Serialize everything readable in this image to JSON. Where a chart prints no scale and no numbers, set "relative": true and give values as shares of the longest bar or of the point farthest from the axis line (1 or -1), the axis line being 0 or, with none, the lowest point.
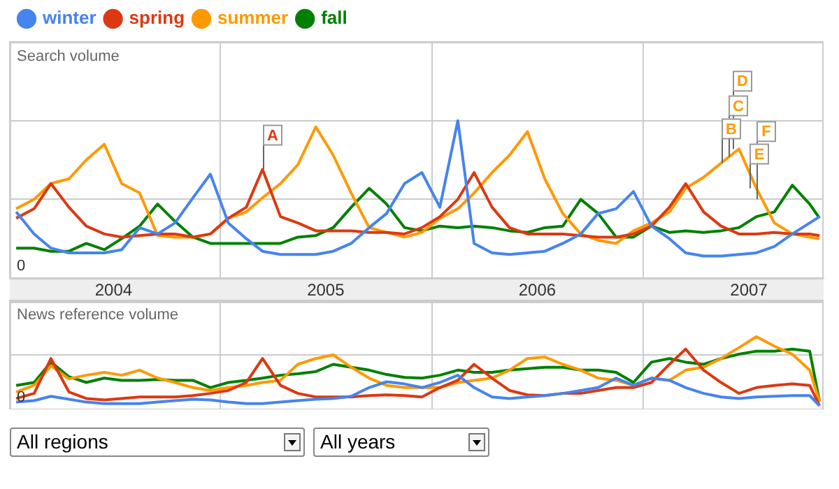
{
  "chart_data": [
    {
      "type": "line",
      "title": "Search volume",
      "relative": true,
      "legend": "top left",
      "grid": true,
      "tick_labels": "x",
      "x": [
        "2004-01-15",
        "2004-02-15",
        "2004-03-15",
        "2004-04-15",
        "2004-05-15",
        "2004-06-15",
        "2004-07-15",
        "2004-08-15",
        "2004-09-15",
        "2004-10-15",
        "2004-11-15",
        "2004-12-15",
        "2005-01-15",
        "2005-02-15",
        "2005-03-15",
        "2005-04-15",
        "2005-05-15",
        "2005-06-15",
        "2005-07-15",
        "2005-08-15",
        "2005-09-15",
        "2005-10-15",
        "2005-11-15",
        "2005-12-15",
        "2006-01-15",
        "2006-02-15",
        "2006-03-15",
        "2006-04-15",
        "2006-05-15",
        "2006-06-15",
        "2006-07-15",
        "2006-08-15",
        "2006-09-15",
        "2006-10-15",
        "2006-11-15",
        "2006-12-15",
        "2007-01-15",
        "2007-02-15",
        "2007-03-15",
        "2007-04-15",
        "2007-05-15",
        "2007-06-15",
        "2007-07-15",
        "2007-08-15",
        "2007-09-15",
        "2007-10-15",
        "2007-11-01"
      ],
      "xlim": [
        "2004-01-04",
        "2007-11-08"
      ],
      "xticks": [
        {
          "value": "2004-07-01",
          "label": "2004"
        },
        {
          "value": "2005-01-01",
          "label": null
        },
        {
          "value": "2005-07-02",
          "label": "2005"
        },
        {
          "value": "2006-01-01",
          "label": null
        },
        {
          "value": "2006-07-02",
          "label": "2006"
        },
        {
          "value": "2007-01-01",
          "label": null
        },
        {
          "value": "2007-07-02",
          "label": "2007"
        }
      ],
      "series": [
        {
          "name": "winter",
          "color": "#4684ee",
          "values": [
            0.42,
            0.28,
            0.19,
            0.16,
            0.16,
            0.16,
            0.18,
            0.32,
            0.28,
            0.35,
            0.51,
            0.66,
            0.35,
            0.25,
            0.17,
            0.15,
            0.15,
            0.15,
            0.17,
            0.22,
            0.32,
            0.41,
            0.6,
            0.67,
            0.45,
            1.0,
            0.22,
            0.16,
            0.15,
            0.16,
            0.17,
            0.22,
            0.28,
            0.41,
            0.44,
            0.55,
            0.33,
            0.25,
            0.16,
            0.14,
            0.14,
            0.15,
            0.16,
            0.2,
            0.28,
            0.35,
            0.39
          ]
        },
        {
          "name": "spring",
          "color": "#dc3912",
          "values": [
            0.38,
            0.44,
            0.6,
            0.45,
            0.33,
            0.28,
            0.26,
            0.27,
            0.28,
            0.28,
            0.26,
            0.28,
            0.38,
            0.45,
            0.69,
            0.39,
            0.35,
            0.3,
            0.3,
            0.3,
            0.29,
            0.29,
            0.28,
            0.32,
            0.39,
            0.5,
            0.67,
            0.45,
            0.32,
            0.28,
            0.28,
            0.28,
            0.27,
            0.26,
            0.26,
            0.28,
            0.33,
            0.45,
            0.6,
            0.42,
            0.33,
            0.28,
            0.28,
            0.29,
            0.28,
            0.28,
            0.27
          ]
        },
        {
          "name": "summer",
          "color": "#ff9900",
          "values": [
            0.44,
            0.5,
            0.6,
            0.63,
            0.75,
            0.85,
            0.6,
            0.54,
            0.27,
            0.26,
            0.26,
            0.28,
            0.38,
            0.42,
            0.51,
            0.6,
            0.72,
            0.96,
            0.78,
            0.54,
            0.32,
            0.29,
            0.26,
            0.29,
            0.38,
            0.44,
            0.54,
            0.67,
            0.78,
            0.93,
            0.63,
            0.41,
            0.28,
            0.24,
            0.22,
            0.3,
            0.35,
            0.42,
            0.57,
            0.64,
            0.73,
            0.82,
            0.57,
            0.35,
            0.28,
            0.26,
            0.25
          ]
        },
        {
          "name": "fall",
          "color": "#008000",
          "values": [
            0.19,
            0.19,
            0.17,
            0.17,
            0.22,
            0.18,
            0.25,
            0.33,
            0.47,
            0.36,
            0.26,
            0.22,
            0.22,
            0.22,
            0.22,
            0.22,
            0.26,
            0.27,
            0.32,
            0.45,
            0.57,
            0.47,
            0.32,
            0.3,
            0.33,
            0.32,
            0.33,
            0.32,
            0.3,
            0.29,
            0.32,
            0.33,
            0.5,
            0.41,
            0.26,
            0.26,
            0.33,
            0.29,
            0.3,
            0.29,
            0.3,
            0.32,
            0.39,
            0.42,
            0.59,
            0.47,
            0.38
          ]
        }
      ],
      "annotations": [
        "0",
        {
          "text": "A",
          "x": "2005-03-15",
          "y": 0.69
        },
        {
          "text": "B",
          "x": "2007-05-15",
          "y": 0.73
        },
        {
          "text": "C",
          "x": "2007-05-27",
          "y": 0.77
        },
        {
          "text": "D",
          "x": "2007-06-04",
          "y": 0.82
        },
        {
          "text": "E",
          "x": "2007-07-02",
          "y": 0.57
        },
        {
          "text": "F",
          "x": "2007-07-14",
          "y": 0.5
        }
      ]
    },
    {
      "type": "line",
      "title": "News reference volume",
      "relative": true,
      "grid": true,
      "tick_labels": false,
      "x": [
        "2004-01-15",
        "2004-02-15",
        "2004-03-15",
        "2004-04-15",
        "2004-05-15",
        "2004-06-15",
        "2004-07-15",
        "2004-08-15",
        "2004-09-15",
        "2004-10-15",
        "2004-11-15",
        "2004-12-15",
        "2005-01-15",
        "2005-02-15",
        "2005-03-15",
        "2005-04-15",
        "2005-05-15",
        "2005-06-15",
        "2005-07-15",
        "2005-08-15",
        "2005-09-15",
        "2005-10-15",
        "2005-11-15",
        "2005-12-15",
        "2006-01-15",
        "2006-02-15",
        "2006-03-15",
        "2006-04-15",
        "2006-05-15",
        "2006-06-15",
        "2006-07-15",
        "2006-08-15",
        "2006-09-15",
        "2006-10-15",
        "2006-11-15",
        "2006-12-15",
        "2007-01-15",
        "2007-02-15",
        "2007-03-15",
        "2007-04-15",
        "2007-05-15",
        "2007-06-15",
        "2007-07-15",
        "2007-08-15",
        "2007-09-15",
        "2007-10-15",
        "2007-11-01"
      ],
      "xlim": [
        "2004-01-04",
        "2007-11-08"
      ],
      "xticks": [
        {
          "value": "2005-01-01",
          "label": null
        },
        {
          "value": "2006-01-01",
          "label": null
        },
        {
          "value": "2007-01-01",
          "label": null
        }
      ],
      "series": [
        {
          "color": "#4684ee",
          "values": [
            0.1,
            0.12,
            0.18,
            0.14,
            0.1,
            0.08,
            0.08,
            0.08,
            0.1,
            0.12,
            0.14,
            0.13,
            0.1,
            0.08,
            0.08,
            0.1,
            0.12,
            0.14,
            0.15,
            0.18,
            0.3,
            0.38,
            0.35,
            0.3,
            0.37,
            0.47,
            0.3,
            0.17,
            0.15,
            0.17,
            0.19,
            0.22,
            0.26,
            0.3,
            0.43,
            0.33,
            0.43,
            0.4,
            0.3,
            0.22,
            0.17,
            0.15,
            0.17,
            0.18,
            0.19,
            0.19,
            0.05
          ]
        },
        {
          "color": "#dc3912",
          "values": [
            0.15,
            0.22,
            0.7,
            0.24,
            0.15,
            0.13,
            0.15,
            0.17,
            0.17,
            0.17,
            0.19,
            0.22,
            0.26,
            0.37,
            0.7,
            0.33,
            0.22,
            0.17,
            0.17,
            0.17,
            0.19,
            0.2,
            0.19,
            0.17,
            0.3,
            0.4,
            0.62,
            0.43,
            0.26,
            0.2,
            0.19,
            0.22,
            0.22,
            0.26,
            0.3,
            0.3,
            0.37,
            0.62,
            0.83,
            0.54,
            0.37,
            0.22,
            0.3,
            0.33,
            0.35,
            0.33,
            0.05
          ]
        },
        {
          "color": "#ff9900",
          "values": [
            0.24,
            0.33,
            0.6,
            0.42,
            0.47,
            0.51,
            0.47,
            0.54,
            0.43,
            0.37,
            0.3,
            0.26,
            0.3,
            0.33,
            0.37,
            0.4,
            0.62,
            0.7,
            0.75,
            0.58,
            0.43,
            0.33,
            0.3,
            0.3,
            0.3,
            0.37,
            0.4,
            0.43,
            0.54,
            0.7,
            0.72,
            0.62,
            0.54,
            0.43,
            0.4,
            0.33,
            0.43,
            0.4,
            0.54,
            0.58,
            0.7,
            0.85,
            1.0,
            0.87,
            0.76,
            0.54,
            0.11
          ]
        },
        {
          "color": "#008000",
          "values": [
            0.33,
            0.37,
            0.65,
            0.45,
            0.37,
            0.43,
            0.4,
            0.4,
            0.41,
            0.4,
            0.4,
            0.3,
            0.37,
            0.4,
            0.43,
            0.47,
            0.49,
            0.52,
            0.62,
            0.58,
            0.54,
            0.48,
            0.44,
            0.43,
            0.47,
            0.54,
            0.51,
            0.51,
            0.54,
            0.56,
            0.58,
            0.58,
            0.54,
            0.54,
            0.51,
            0.37,
            0.65,
            0.7,
            0.65,
            0.62,
            0.7,
            0.76,
            0.8,
            0.8,
            0.83,
            0.8,
            0.11
          ]
        }
      ],
      "annotations": [
        "0"
      ]
    },
    {
      "type": "other",
      "annotations": [
        "All regions",
        "All years"
      ]
    }
  ]
}
